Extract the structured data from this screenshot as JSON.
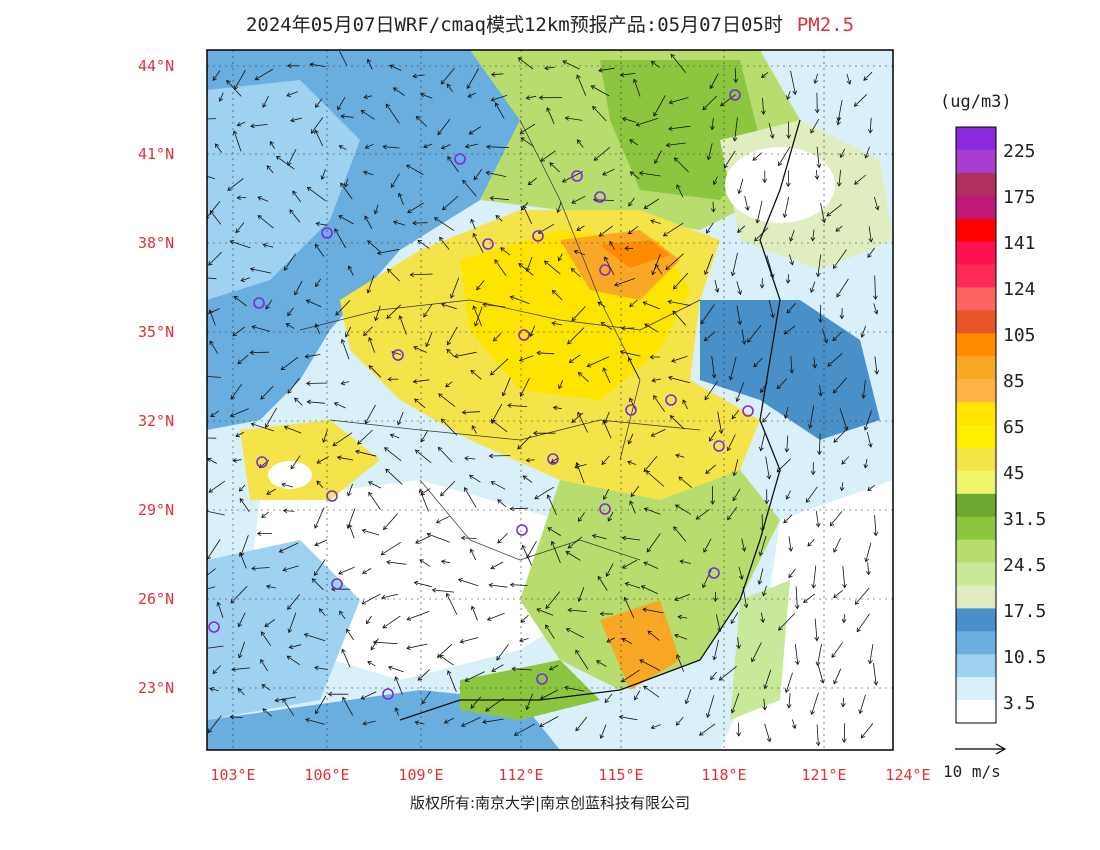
{
  "header": {
    "title": "2024年05月07日WRF/cmaq模式12km预报产品:05月07日05时",
    "variable": "PM2.5"
  },
  "map": {
    "lat_labels": [
      "44°N",
      "41°N",
      "38°N",
      "35°N",
      "32°N",
      "29°N",
      "26°N",
      "23°N"
    ],
    "lon_labels": [
      "103°E",
      "106°E",
      "109°E",
      "112°E",
      "115°E",
      "118°E",
      "121°E",
      "124°E"
    ],
    "label_color": "#e0303a",
    "city_marker_color": "#7a2be2"
  },
  "colorbar": {
    "unit": "(ug/m3)",
    "labels": [
      "225",
      "175",
      "141",
      "124",
      "105",
      "85",
      "65",
      "45",
      "31.5",
      "24.5",
      "17.5",
      "10.5",
      "3.5"
    ],
    "colors": [
      "#8a2be2",
      "#a83cd0",
      "#b03060",
      "#c0187a",
      "#ff0000",
      "#ff1050",
      "#ff2a55",
      "#ff6464",
      "#e8552a",
      "#ff8c00",
      "#f9a825",
      "#ffb347",
      "#ffe400",
      "#fff000",
      "#f5e34a",
      "#eef56a",
      "#6aa832",
      "#8cc63f",
      "#b8dc6e",
      "#c8e89a",
      "#dfedc0",
      "#4a90c8",
      "#6aaee0",
      "#9fd2f0",
      "#d9f0fa",
      "#ffffff"
    ]
  },
  "wind": {
    "reference_label": "10 m/s"
  },
  "footer": {
    "copyright": "版权所有:南京大学|南京创蓝科技有限公司"
  }
}
